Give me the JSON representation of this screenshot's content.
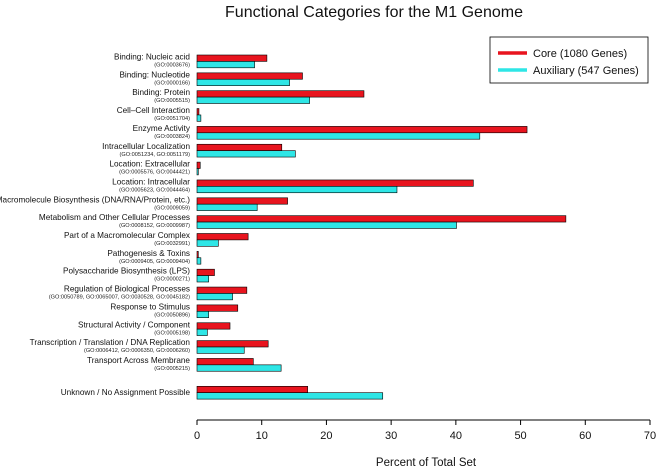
{
  "chart_data": {
    "type": "bar",
    "orientation": "horizontal",
    "title": "Functional Categories for the M1 Genome",
    "xlabel": "Percent of Total Set",
    "ylabel": "",
    "xlim": [
      0,
      70
    ],
    "xticks": [
      0,
      10,
      20,
      30,
      40,
      50,
      60,
      70
    ],
    "legend_position": "top-right",
    "grid": false,
    "categories": [
      {
        "name": "Binding: Nucleic acid",
        "go": "(GO:0003676)"
      },
      {
        "name": "Binding: Nucleotide",
        "go": "(GO:0000166)"
      },
      {
        "name": "Binding: Protein",
        "go": "(GO:0005515)"
      },
      {
        "name": "Cell–Cell Interaction",
        "go": "(GO:0051704)"
      },
      {
        "name": "Enzyme Activity",
        "go": "(GO:0003824)"
      },
      {
        "name": "Intracellular Localization",
        "go": "(GO:0051234, GO:0051179)"
      },
      {
        "name": "Location: Extracellular",
        "go": "(GO:0005576, GO:0044421)"
      },
      {
        "name": "Location: Intracellular",
        "go": "(GO:0005623, GO:0044464)"
      },
      {
        "name": "Macromolecule Biosynthesis (DNA/RNA/Protein, etc.)",
        "go": "(GO:0009059)"
      },
      {
        "name": "Metabolism and Other Cellular Processes",
        "go": "(GO:0008152, GO:0009987)"
      },
      {
        "name": "Part of a Macromolecular Complex",
        "go": "(GO:0032991)"
      },
      {
        "name": "Pathogenesis & Toxins",
        "go": "(GO:0009405, GO:0009404)"
      },
      {
        "name": "Polysaccharide Biosynthesis (LPS)",
        "go": "(GO:0000271)"
      },
      {
        "name": "Regulation of Biological Processes",
        "go": "(GO:0050789, GO:0065007, GO:0030528, GO:0045182)"
      },
      {
        "name": "Response to Stimulus",
        "go": "(GO:0050896)"
      },
      {
        "name": "Structural Activity / Component",
        "go": "(GO:0005198)"
      },
      {
        "name": "Transcription / Translation / DNA Replication",
        "go": "(GO:0006412, GO:0006350, GO:0006260)"
      },
      {
        "name": "Transport Across Membrane",
        "go": "(GO:0005215)"
      },
      {
        "name": "Unknown / No Assignment Possible",
        "go": ""
      }
    ],
    "series": [
      {
        "name": "Core (1080 Genes)",
        "color": "#e8141e",
        "values": [
          10.8,
          16.3,
          25.8,
          0.3,
          51.0,
          13.1,
          0.5,
          42.7,
          14.0,
          57.0,
          7.9,
          0.2,
          2.7,
          7.7,
          6.3,
          5.1,
          11.0,
          8.7,
          17.1
        ]
      },
      {
        "name": "Auxiliary (547 Genes)",
        "color": "#2ee6e6",
        "values": [
          8.9,
          14.3,
          17.4,
          0.6,
          43.7,
          15.2,
          0.2,
          30.9,
          9.3,
          40.1,
          3.3,
          0.6,
          1.8,
          5.5,
          1.8,
          1.6,
          7.3,
          13.0,
          28.7
        ]
      }
    ]
  }
}
